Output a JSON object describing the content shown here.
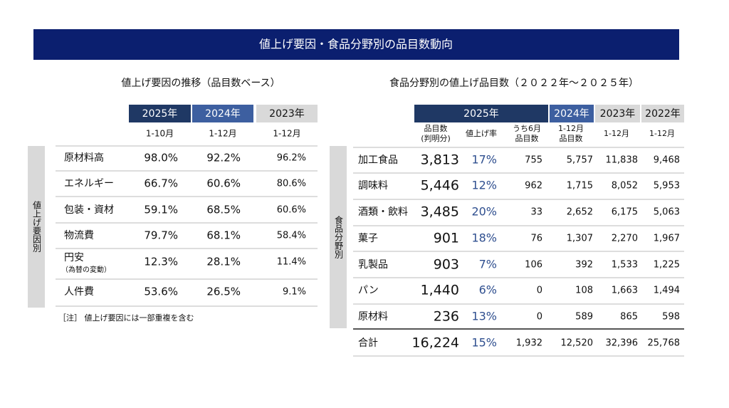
{
  "title": "値上げ要因・食品分野別の品目数動向",
  "left": {
    "subtitle": "値上げ要因の推移（品目数ベース）",
    "headers": [
      "2025年",
      "2024年",
      "2023年"
    ],
    "periods": [
      "1-10月",
      "1-12月",
      "1-12月"
    ],
    "side_label": "値上げ要因別",
    "rows": [
      {
        "label": "原材料高",
        "values": [
          "98.0%",
          "92.2%",
          "96.2%"
        ]
      },
      {
        "label": "エネルギー",
        "values": [
          "66.7%",
          "60.6%",
          "80.6%"
        ]
      },
      {
        "label": "包装・資材",
        "values": [
          "59.1%",
          "68.5%",
          "60.6%"
        ]
      },
      {
        "label": "物流費",
        "values": [
          "79.7%",
          "68.1%",
          "58.4%"
        ]
      },
      {
        "label": "円安",
        "sub_label": "（為替の変動）",
        "values": [
          "12.3%",
          "28.1%",
          "11.4%"
        ]
      },
      {
        "label": "人件費",
        "values": [
          "53.6%",
          "26.5%",
          "9.1%"
        ]
      }
    ],
    "note": "［注］ 値上げ要因には一部重複を含む"
  },
  "right": {
    "subtitle": "食品分野別の値上げ品目数（２０２２年～２０２５年）",
    "headers": [
      "2025年",
      "2024年",
      "2023年",
      "2022年"
    ],
    "subheaders": [
      [
        "品目数",
        "(判明分)"
      ],
      [
        "値上げ率"
      ],
      [
        "うち6月",
        "品目数"
      ],
      [
        "1-12月",
        "品目数"
      ],
      [
        "1-12月"
      ],
      [
        "1-12月"
      ]
    ],
    "side_label": "食品分野別",
    "rows": [
      {
        "label": "加工食品",
        "values": [
          "3,813",
          "17%",
          "755",
          "5,757",
          "11,838",
          "9,468"
        ]
      },
      {
        "label": "調味料",
        "values": [
          "5,446",
          "12%",
          "962",
          "1,715",
          "8,052",
          "5,953"
        ]
      },
      {
        "label": "酒類・飲料",
        "values": [
          "3,485",
          "20%",
          "33",
          "2,652",
          "6,175",
          "5,063"
        ]
      },
      {
        "label": "菓子",
        "values": [
          "901",
          "18%",
          "76",
          "1,307",
          "2,270",
          "1,967"
        ]
      },
      {
        "label": "乳製品",
        "values": [
          "903",
          "7%",
          "106",
          "392",
          "1,533",
          "1,225"
        ]
      },
      {
        "label": "パン",
        "values": [
          "1,440",
          "6%",
          "0",
          "108",
          "1,663",
          "1,494"
        ]
      },
      {
        "label": "原材料",
        "values": [
          "236",
          "13%",
          "0",
          "589",
          "865",
          "598"
        ]
      }
    ],
    "total": {
      "label": "合計",
      "values": [
        "16,224",
        "15%",
        "1,932",
        "12,520",
        "32,396",
        "25,768"
      ]
    }
  }
}
